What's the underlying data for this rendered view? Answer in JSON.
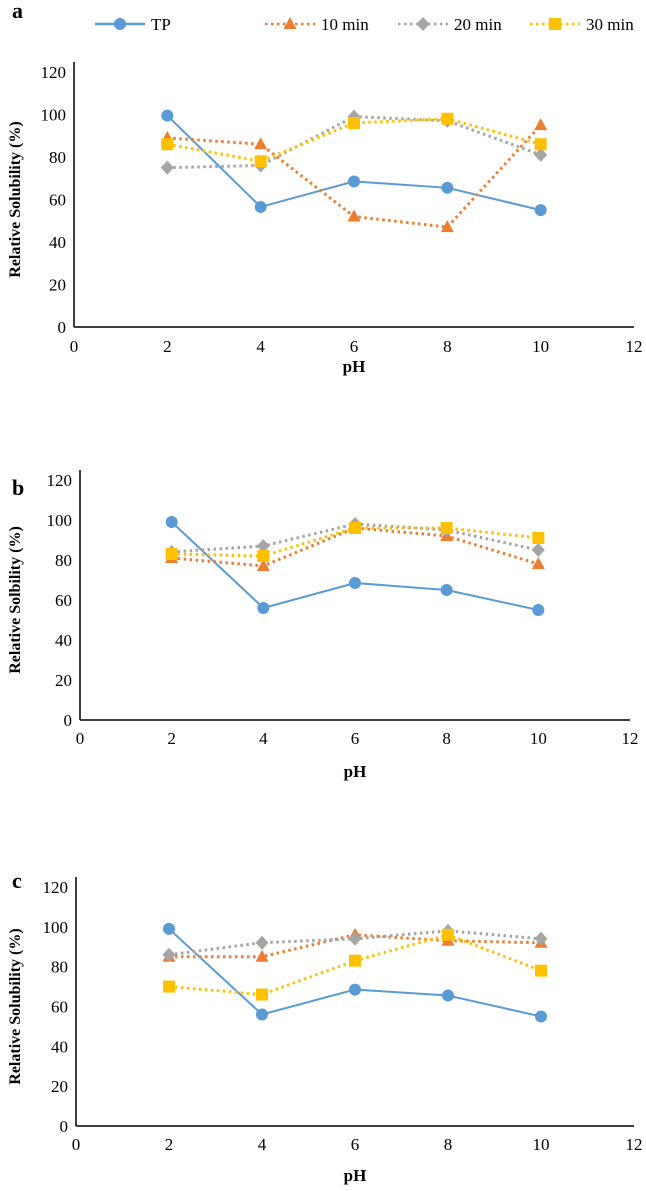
{
  "chart_data": {
    "type": "line",
    "legend": {
      "placement": "top",
      "entries": [
        {
          "name": "TP",
          "color": "#5B9BD5",
          "marker": "circle",
          "dash": "solid"
        },
        {
          "name": "10 min",
          "color": "#ED7D31",
          "marker": "triangle",
          "dash": "dotted"
        },
        {
          "name": "20 min",
          "color": "#A5A5A5",
          "marker": "diamond",
          "dash": "dotted"
        },
        {
          "name": "30 min",
          "color": "#FFC000",
          "marker": "square",
          "dash": "dotted"
        }
      ]
    },
    "panels": [
      {
        "label": "a",
        "xlabel": "pH",
        "ylabel": "Relative Solubility (%)",
        "xlim": [
          0,
          12
        ],
        "ylim": [
          0,
          120
        ],
        "xticks": [
          "0",
          "2",
          "4",
          "6",
          "8",
          "10",
          "12"
        ],
        "yticks": [
          "0",
          "20",
          "40",
          "60",
          "80",
          "100",
          "120"
        ],
        "x": [
          2,
          4,
          6,
          8,
          10
        ],
        "series": [
          {
            "name": "TP",
            "values": [
              99.5,
              56.5,
              68.5,
              65.5,
              55
            ]
          },
          {
            "name": "10 min",
            "values": [
              89,
              86,
              52,
              47,
              95
            ]
          },
          {
            "name": "20 min",
            "values": [
              75,
              76,
              99,
              97,
              81
            ]
          },
          {
            "name": "30 min",
            "values": [
              86,
              78,
              96,
              98,
              86
            ]
          }
        ]
      },
      {
        "label": "b",
        "xlabel": "pH",
        "ylabel": "Relative Solbility (%)",
        "xlim": [
          0,
          12
        ],
        "ylim": [
          0,
          120
        ],
        "xticks": [
          "0",
          "2",
          "4",
          "6",
          "8",
          "10",
          "12"
        ],
        "yticks": [
          "0",
          "20",
          "40",
          "60",
          "80",
          "100",
          "120"
        ],
        "x": [
          2,
          4,
          6,
          8,
          10
        ],
        "series": [
          {
            "name": "TP",
            "values": [
              99,
              56,
              68.5,
              65,
              55
            ]
          },
          {
            "name": "10 min",
            "values": [
              81,
              77,
              96,
              92,
              78
            ]
          },
          {
            "name": "20 min",
            "values": [
              84,
              87,
              98,
              95,
              85
            ]
          },
          {
            "name": "30 min",
            "values": [
              83,
              82,
              96,
              96,
              91
            ]
          }
        ]
      },
      {
        "label": "c",
        "xlabel": "pH",
        "ylabel": "Relative Solubility (%)",
        "xlim": [
          0,
          12
        ],
        "ylim": [
          0,
          120
        ],
        "xticks": [
          "0",
          "2",
          "4",
          "6",
          "8",
          "10",
          "12"
        ],
        "yticks": [
          "0",
          "20",
          "40",
          "60",
          "80",
          "100",
          "120"
        ],
        "x": [
          2,
          4,
          6,
          8,
          10
        ],
        "series": [
          {
            "name": "TP",
            "values": [
              99,
              56,
              68.5,
              65.5,
              55
            ]
          },
          {
            "name": "10 min",
            "values": [
              85,
              85,
              96,
              93,
              92
            ]
          },
          {
            "name": "20 min",
            "values": [
              86,
              92,
              94,
              98,
              94
            ]
          },
          {
            "name": "30 min",
            "values": [
              70,
              66,
              83,
              96,
              78
            ]
          }
        ]
      }
    ]
  }
}
